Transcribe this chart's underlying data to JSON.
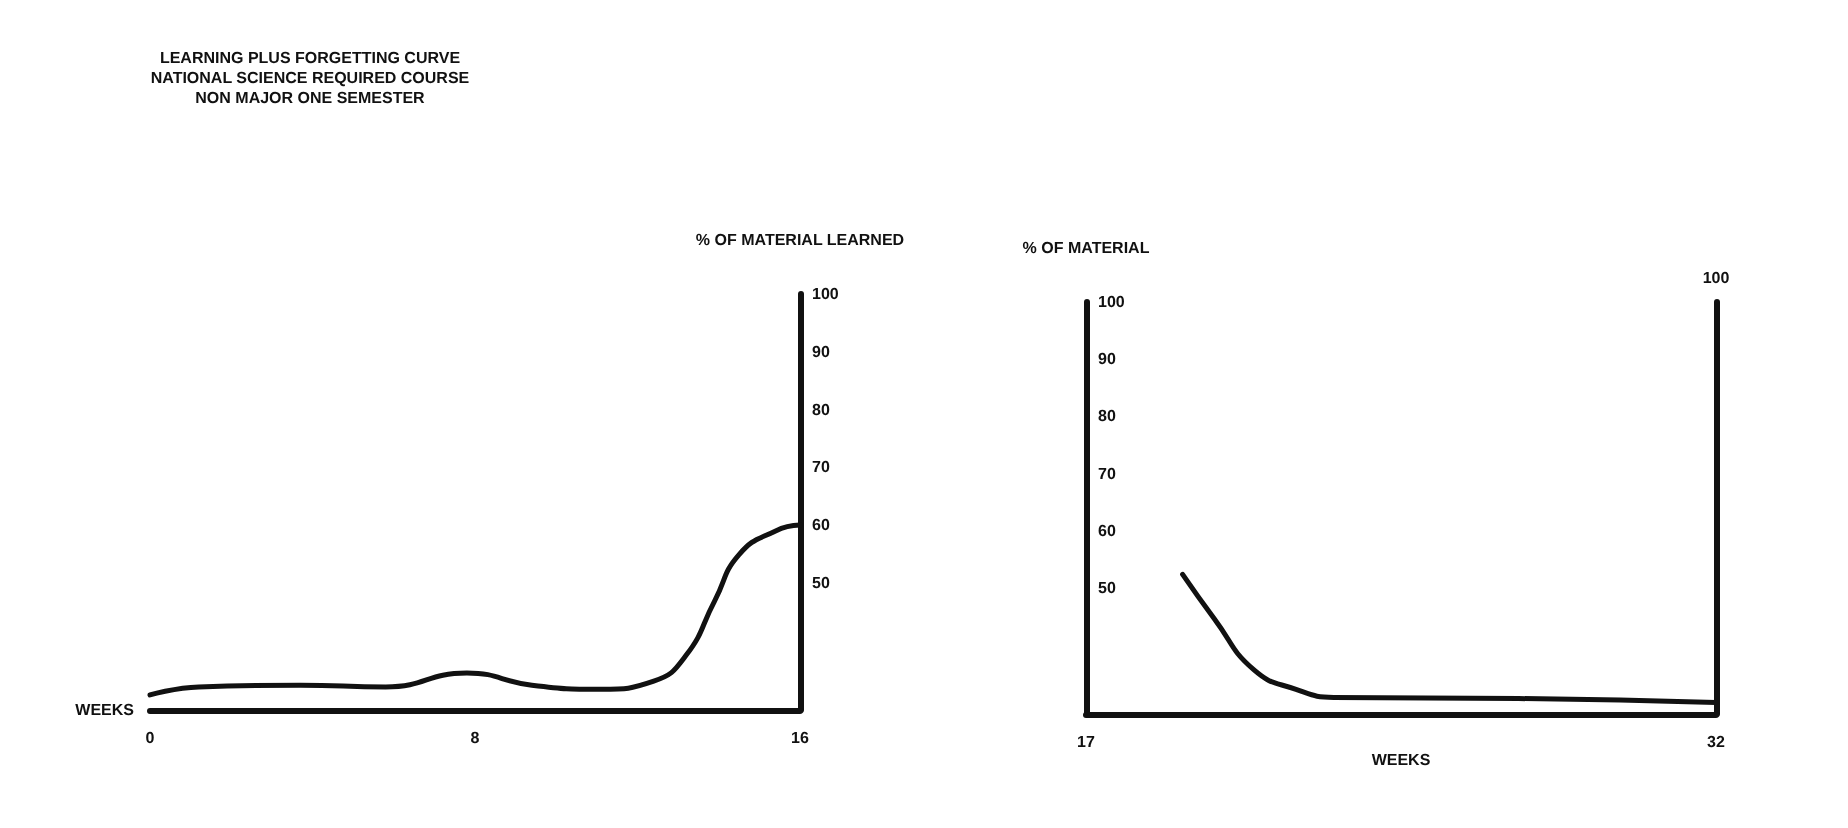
{
  "chart_data": [
    {
      "type": "line",
      "title": "LEARNING PLUS FORGETTING CURVE",
      "subtitle": "NATIONAL SCIENCE REQUIRED COURSE\nNON MAJOR ONE SEMESTER",
      "xlabel": "WEEKS",
      "ylabel": "% OF MATERIAL LEARNED",
      "x": [
        0,
        1.2,
        3.7,
        5.8,
        7.8,
        9.4,
        11.1,
        12.4,
        13.2,
        13.9,
        14.5,
        15.4,
        16
      ],
      "series": [
        {
          "color": "#111111",
          "values": [
            30.6,
            32,
            32.3,
            32,
            34.4,
            32.3,
            31.6,
            33,
            37.5,
            46.9,
            54.9,
            59,
            60
          ]
        }
      ],
      "xlim": [
        0,
        16
      ],
      "xticks": [
        0,
        8,
        16
      ],
      "ylim": [
        28,
        100
      ],
      "yticks": [
        50,
        60,
        70,
        80,
        90,
        100
      ],
      "grid": false,
      "marker": "none",
      "line_style": "solid"
    },
    {
      "type": "line",
      "xlabel": "WEEKS",
      "ylabel": "% OF MATERIAL",
      "x": [
        19.3,
        20.05,
        21,
        22,
        22.9,
        27.3,
        32
      ],
      "series": [
        {
          "color": "#111111",
          "values": [
            52.4,
            44.7,
            35.7,
            32.3,
            30.9,
            30.7,
            30
          ]
        }
      ],
      "xlim": [
        17,
        32
      ],
      "xticks": [
        17,
        32
      ],
      "ylim": [
        28,
        100
      ],
      "yticks": [
        50,
        60,
        70,
        80,
        90,
        100
      ],
      "annotations": [
        "100"
      ],
      "grid": false,
      "marker": "none",
      "line_style": "solid"
    }
  ]
}
